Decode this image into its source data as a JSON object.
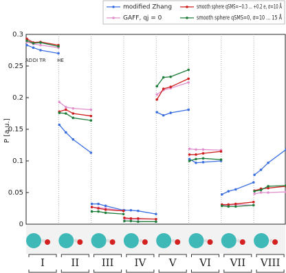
{
  "chart_data": {
    "type": "line",
    "y_label": "P [a.u.]",
    "categories": [
      "I",
      "II",
      "III",
      "IV",
      "V",
      "VI",
      "VII",
      "VIII"
    ],
    "point_labels": [
      "AD",
      "DI",
      "TR",
      "HE"
    ],
    "ylim": [
      0,
      0.3
    ],
    "yticks": [
      0,
      0.05,
      0.1,
      0.15,
      0.2,
      0.25,
      0.3
    ],
    "series": [
      {
        "name": "modified Zhang",
        "color": "#3b6fe0",
        "values": [
          [
            0.283,
            0.279,
            0.275,
            0.27
          ],
          [
            0.157,
            0.145,
            0.134,
            0.113
          ],
          [
            0.032,
            0.032,
            0.029,
            0.022
          ],
          [
            0.022,
            0.022,
            0.021,
            0.016
          ],
          [
            0.177,
            0.172,
            0.176,
            0.181
          ],
          [
            0.103,
            0.097,
            0.098,
            0.1
          ],
          [
            0.047,
            0.052,
            0.055,
            0.066
          ],
          [
            0.078,
            0.086,
            0.097,
            0.118
          ]
        ]
      },
      {
        "name": "GAFF, qj = 0",
        "color": "#e08fcc",
        "values": [
          [
            0.288,
            0.285,
            0.283,
            0.279
          ],
          [
            0.193,
            0.185,
            0.183,
            0.181
          ],
          [
            0.027,
            0.026,
            0.025,
            0.021
          ],
          [
            0.008,
            0.008,
            0.008,
            0.008
          ],
          [
            0.205,
            0.212,
            0.215,
            0.224
          ],
          [
            0.119,
            0.118,
            0.118,
            0.117
          ],
          [
            0.03,
            0.03,
            0.031,
            0.03
          ],
          [
            0.048,
            0.05,
            0.05,
            0.051
          ]
        ]
      },
      {
        "name": "smooth sphere qSMS=−0.3 ... +0.2 e, σ=10 Å",
        "color": "#d01e1e",
        "values": [
          [
            0.293,
            0.287,
            0.288,
            0.283
          ],
          [
            0.178,
            0.181,
            0.175,
            0.171
          ],
          [
            0.027,
            0.025,
            0.023,
            0.021
          ],
          [
            0.01,
            0.009,
            0.009,
            0.008
          ],
          [
            0.197,
            0.214,
            0.217,
            0.23
          ],
          [
            0.11,
            0.11,
            0.112,
            0.115
          ],
          [
            0.031,
            0.031,
            0.032,
            0.035
          ],
          [
            0.053,
            0.056,
            0.057,
            0.06
          ]
        ]
      },
      {
        "name": "smooth sphere qSMS=0, σ=10 ... 15 Å",
        "color": "#1e7d3a",
        "values": [
          [
            0.29,
            0.286,
            0.287,
            0.281
          ],
          [
            0.176,
            0.175,
            0.168,
            0.164
          ],
          [
            0.02,
            0.02,
            0.018,
            0.016
          ],
          [
            0.005,
            0.005,
            0.004,
            0.004
          ],
          [
            0.218,
            0.232,
            0.233,
            0.244
          ],
          [
            0.1,
            0.103,
            0.104,
            0.102
          ],
          [
            0.029,
            0.028,
            0.028,
            0.03
          ],
          [
            0.052,
            0.054,
            0.06,
            0.061
          ]
        ]
      }
    ]
  }
}
